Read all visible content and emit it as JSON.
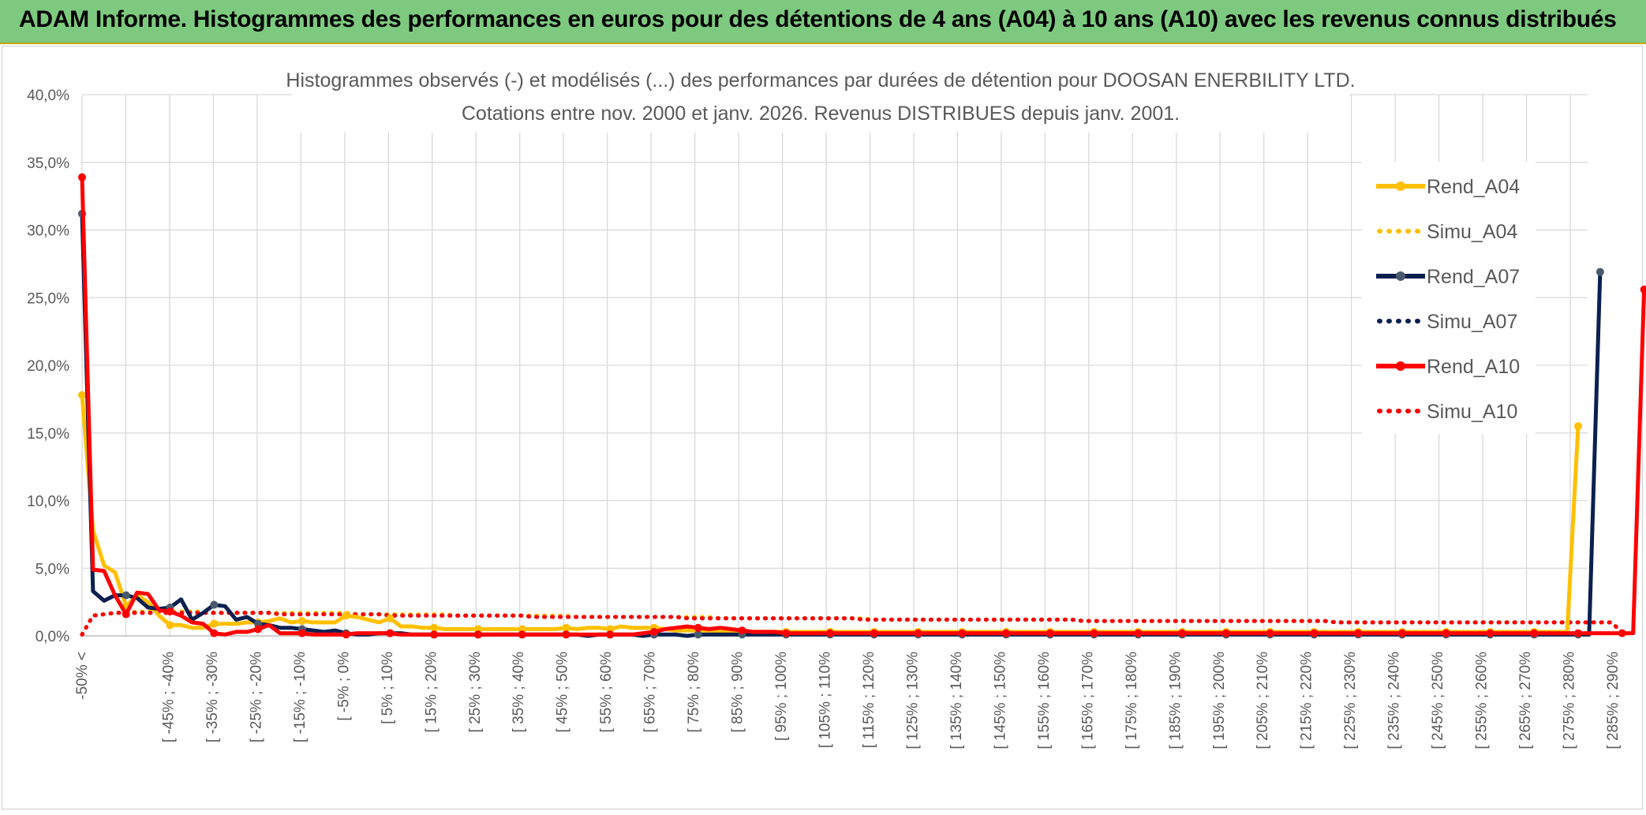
{
  "banner": {
    "title": "ADAM Informe. Histogrammes des performances en euros pour des détentions de 4 ans (A04) à 10 ans (A10) avec les revenus connus distribués"
  },
  "chart_data": {
    "type": "line",
    "title_line1": "Histogrammes observés (-) et modélisés (...) des performances par durées de détention pour DOOSAN ENERBILITY LTD.",
    "title_line2": "Cotations entre nov. 2000 et janv. 2026. Revenus DISTRIBUES depuis janv. 2001.",
    "y_ticks": [
      "0,0%",
      "5,0%",
      "10,0%",
      "15,0%",
      "20,0%",
      "25,0%",
      "30,0%",
      "35,0%",
      "40,0%"
    ],
    "ylim": [
      0,
      40
    ],
    "x_labels": [
      "-50% <",
      "[ -45% ; -40%",
      "[ -35% ; -30%",
      "[ -25% ; -20%",
      "[ -15% ; -10%",
      "[ -5% ; 0%",
      "[ 5% ; 10%",
      "[ 15% ; 20%",
      "[ 25% ; 30%",
      "[ 35% ; 40%",
      "[ 45% ; 50%",
      "[ 55% ; 60%",
      "[ 65% ; 70%",
      "[ 75% ; 80%",
      "[ 85% ; 90%",
      "[ 95% ; 100%",
      "[ 105% ; 110%",
      "[ 115% ; 120%",
      "[ 125% ; 130%",
      "[ 135% ; 140%",
      "[ 145% ; 150%",
      "[ 155% ; 160%",
      "[ 165% ; 170%",
      "[ 175% ; 180%",
      "[ 185% ; 190%",
      "[ 195% ; 200%",
      "[ 205% ; 210%",
      "[ 215% ; 220%",
      "[ 225% ; 230%",
      "[ 235% ; 240%",
      "[ 245% ; 250%",
      "[ 255% ; 260%",
      "[ 265% ; 270%",
      "[ 275% ; 280%",
      "[ 285% ; 290%"
    ],
    "legend_position": "right",
    "grid": true,
    "colors": {
      "A04": "#ffc000",
      "A07": "#0b2050",
      "A10": "#ff0000",
      "marker_A07": "#4a5a6e"
    },
    "series": [
      {
        "name": "Rend_A04",
        "style": "solid",
        "color": "#ffc000",
        "values": [
          17.8,
          7.8,
          5.2,
          4.7,
          2.2,
          3.0,
          2.5,
          1.5,
          0.8,
          0.8,
          0.6,
          0.6,
          0.9,
          0.9,
          0.9,
          1.0,
          1.0,
          1.1,
          1.3,
          1.0,
          1.1,
          1.0,
          1.0,
          1.0,
          1.5,
          1.4,
          1.2,
          1.0,
          1.3,
          0.7,
          0.7,
          0.6,
          0.6,
          0.5,
          0.5,
          0.5,
          0.5,
          0.5,
          0.5,
          0.5,
          0.5,
          0.5,
          0.5,
          0.5,
          0.6,
          0.5,
          0.6,
          0.6,
          0.5,
          0.7,
          0.6,
          0.6,
          0.6,
          0.5,
          0.4,
          0.4,
          0.4,
          0.4,
          0.3,
          0.3,
          0.3,
          0.3,
          0.3,
          0.3,
          0.3,
          0.3,
          0.3,
          0.3,
          0.3,
          0.3,
          0.3,
          0.3,
          0.3,
          0.3,
          0.3,
          0.3,
          0.3,
          0.3,
          0.3,
          0.3,
          0.3,
          0.3,
          0.3,
          0.3,
          0.3,
          0.3,
          0.3,
          0.3,
          0.3,
          0.3,
          0.3,
          0.3,
          0.3,
          0.3,
          0.3,
          0.3,
          0.3,
          0.3,
          0.3,
          0.3,
          0.3,
          0.3,
          0.3,
          0.3,
          0.3,
          0.3,
          0.3,
          0.3,
          0.3,
          0.3,
          0.3,
          0.3,
          0.3,
          0.3,
          0.3,
          0.3,
          0.3,
          0.3,
          0.3,
          0.3,
          0.3,
          0.3,
          0.3,
          0.3,
          0.3,
          0.3,
          0.3,
          0.3,
          0.3,
          0.3,
          0.3,
          0.3,
          0.3,
          0.3,
          0.3,
          0.3,
          15.5
        ]
      },
      {
        "name": "Simu_A04",
        "style": "dotted",
        "color": "#ffc000",
        "values": [
          0.1,
          1.5,
          1.6,
          1.7,
          1.7,
          1.8,
          1.8,
          1.8,
          1.8,
          1.8,
          1.8,
          1.8,
          1.7,
          1.7,
          1.7,
          1.7,
          1.7,
          1.7,
          1.7,
          1.7,
          1.7,
          1.7,
          1.7,
          1.7,
          1.7,
          1.6,
          1.6,
          1.6,
          1.6,
          1.6,
          1.6,
          1.6,
          1.6,
          1.6,
          1.5,
          1.5,
          1.5,
          1.5,
          1.5,
          1.5,
          1.5,
          1.5,
          1.5,
          1.5,
          1.5,
          1.4,
          1.4,
          1.4,
          1.4,
          1.4,
          1.4,
          1.4,
          1.4,
          1.4,
          1.4,
          1.4,
          1.4,
          1.4,
          1.3,
          1.3,
          1.3,
          1.3,
          1.3,
          1.3,
          1.3,
          1.3,
          1.3,
          1.3,
          1.3,
          1.3,
          1.3,
          1.3,
          1.2,
          1.2,
          1.2,
          1.2,
          1.2,
          1.2,
          1.2,
          1.2,
          1.2,
          1.2,
          1.2,
          1.2,
          1.2,
          1.2,
          1.2,
          1.2,
          1.2,
          1.2,
          1.2,
          1.1,
          1.1,
          1.1,
          1.1,
          1.1,
          1.1,
          1.1,
          1.1,
          1.1,
          1.1,
          1.1,
          1.1,
          1.1,
          1.1,
          1.1,
          1.1,
          1.1,
          1.1,
          1.1,
          1.1,
          1.1,
          1.1,
          1.1,
          1.0,
          1.0,
          1.0,
          1.0,
          1.0,
          1.0,
          1.0,
          1.0,
          1.0,
          1.0,
          1.0,
          1.0,
          1.0,
          1.0,
          1.0,
          1.0,
          1.0,
          1.0,
          1.0,
          1.0,
          1.0,
          1.0,
          1.0,
          1.0,
          1.0,
          1.0,
          0.3
        ]
      },
      {
        "name": "Rend_A07",
        "style": "solid",
        "color": "#0b2050",
        "values": [
          31.2,
          3.3,
          2.6,
          3.0,
          3.0,
          2.8,
          2.1,
          2.0,
          2.1,
          2.7,
          1.2,
          1.7,
          2.3,
          2.2,
          1.2,
          1.4,
          0.9,
          0.8,
          0.6,
          0.6,
          0.5,
          0.4,
          0.3,
          0.4,
          0.2,
          0.1,
          0.1,
          0.2,
          0.2,
          0.2,
          0.1,
          0.1,
          0.1,
          0.1,
          0.1,
          0.1,
          0.1,
          0.1,
          0.1,
          0.1,
          0.1,
          0.1,
          0.1,
          0.1,
          0.1,
          0.1,
          0.0,
          0.1,
          0.1,
          0.1,
          0.1,
          0.0,
          0.1,
          0.1,
          0.1,
          0.0,
          0.1,
          0.1,
          0.1,
          0.1,
          0.1,
          0.1,
          0.1,
          0.1,
          0.1,
          0.1,
          0.1,
          0.1,
          0.1,
          0.1,
          0.1,
          0.1,
          0.1,
          0.1,
          0.1,
          0.1,
          0.1,
          0.1,
          0.1,
          0.1,
          0.1,
          0.1,
          0.1,
          0.1,
          0.1,
          0.1,
          0.1,
          0.1,
          0.1,
          0.1,
          0.1,
          0.1,
          0.1,
          0.1,
          0.1,
          0.1,
          0.1,
          0.1,
          0.1,
          0.1,
          0.1,
          0.1,
          0.1,
          0.1,
          0.1,
          0.1,
          0.1,
          0.1,
          0.1,
          0.1,
          0.1,
          0.1,
          0.1,
          0.1,
          0.1,
          0.1,
          0.1,
          0.1,
          0.1,
          0.1,
          0.1,
          0.1,
          0.1,
          0.1,
          0.1,
          0.1,
          0.1,
          0.1,
          0.1,
          0.1,
          0.1,
          0.1,
          0.1,
          0.1,
          0.1,
          0.1,
          0.1,
          0.1,
          26.9
        ]
      },
      {
        "name": "Simu_A07",
        "style": "dotted",
        "color": "#0b2050",
        "values": [
          0.1,
          1.5,
          1.6,
          1.7,
          1.7,
          1.7,
          1.7,
          1.7,
          1.7,
          1.7,
          1.7,
          1.7,
          1.7,
          1.7,
          1.7,
          1.7,
          1.7,
          1.7,
          1.6,
          1.6,
          1.6,
          1.6,
          1.6,
          1.6,
          1.6,
          1.6,
          1.6,
          1.6,
          1.5,
          1.5,
          1.5,
          1.5,
          1.5,
          1.5,
          1.5,
          1.5,
          1.5,
          1.5,
          1.5,
          1.5,
          1.5,
          1.4,
          1.4,
          1.4,
          1.4,
          1.4,
          1.4,
          1.4,
          1.4,
          1.4,
          1.4,
          1.4,
          1.4,
          1.4,
          1.4,
          1.3,
          1.3,
          1.3,
          1.3,
          1.3,
          1.3,
          1.3,
          1.3,
          1.3,
          1.3,
          1.3,
          1.3,
          1.3,
          1.3,
          1.3,
          1.3,
          1.2,
          1.2,
          1.2,
          1.2,
          1.2,
          1.2,
          1.2,
          1.2,
          1.2,
          1.2,
          1.2,
          1.2,
          1.2,
          1.2,
          1.2,
          1.2,
          1.2,
          1.2,
          1.2,
          1.2,
          1.1,
          1.1,
          1.1,
          1.1,
          1.1,
          1.1,
          1.1,
          1.1,
          1.1,
          1.1,
          1.1,
          1.1,
          1.1,
          1.1,
          1.1,
          1.1,
          1.1,
          1.1,
          1.1,
          1.1,
          1.1,
          1.1,
          1.1,
          1.0,
          1.0,
          1.0,
          1.0,
          1.0,
          1.0,
          1.0,
          1.0,
          1.0,
          1.0,
          1.0,
          1.0,
          1.0,
          1.0,
          1.0,
          1.0,
          1.0,
          1.0,
          1.0,
          1.0,
          1.0,
          1.0,
          1.0,
          1.0,
          1.0,
          1.0,
          0.3
        ]
      },
      {
        "name": "Rend_A10",
        "style": "solid",
        "color": "#ff0000",
        "values": [
          33.9,
          4.9,
          4.8,
          3.0,
          1.6,
          3.2,
          3.1,
          1.9,
          1.8,
          1.5,
          1.0,
          0.9,
          0.2,
          0.1,
          0.3,
          0.3,
          0.5,
          0.8,
          0.2,
          0.2,
          0.2,
          0.1,
          0.1,
          0.1,
          0.1,
          0.2,
          0.2,
          0.2,
          0.2,
          0.1,
          0.1,
          0.1,
          0.1,
          0.1,
          0.1,
          0.1,
          0.1,
          0.1,
          0.1,
          0.1,
          0.1,
          0.1,
          0.1,
          0.1,
          0.1,
          0.1,
          0.1,
          0.1,
          0.1,
          0.1,
          0.1,
          0.2,
          0.3,
          0.5,
          0.6,
          0.7,
          0.6,
          0.5,
          0.6,
          0.5,
          0.4,
          0.3,
          0.3,
          0.3,
          0.2,
          0.2,
          0.2,
          0.2,
          0.2,
          0.2,
          0.2,
          0.2,
          0.2,
          0.2,
          0.2,
          0.2,
          0.2,
          0.2,
          0.2,
          0.2,
          0.2,
          0.2,
          0.2,
          0.2,
          0.2,
          0.2,
          0.2,
          0.2,
          0.2,
          0.2,
          0.2,
          0.2,
          0.2,
          0.2,
          0.2,
          0.2,
          0.2,
          0.2,
          0.2,
          0.2,
          0.2,
          0.2,
          0.2,
          0.2,
          0.2,
          0.2,
          0.2,
          0.2,
          0.2,
          0.2,
          0.2,
          0.2,
          0.2,
          0.2,
          0.2,
          0.2,
          0.2,
          0.2,
          0.2,
          0.2,
          0.2,
          0.2,
          0.2,
          0.2,
          0.2,
          0.2,
          0.2,
          0.2,
          0.2,
          0.2,
          0.2,
          0.2,
          0.2,
          0.2,
          0.2,
          0.2,
          0.2,
          0.2,
          0.2,
          0.2,
          0.2,
          0.2,
          25.6
        ]
      },
      {
        "name": "Simu_A10",
        "style": "dotted",
        "color": "#ff0000",
        "values": [
          0.1,
          1.5,
          1.6,
          1.7,
          1.7,
          1.7,
          1.7,
          1.7,
          1.7,
          1.7,
          1.7,
          1.7,
          1.7,
          1.7,
          1.7,
          1.7,
          1.7,
          1.7,
          1.6,
          1.6,
          1.6,
          1.6,
          1.6,
          1.6,
          1.6,
          1.6,
          1.6,
          1.6,
          1.5,
          1.5,
          1.5,
          1.5,
          1.5,
          1.5,
          1.5,
          1.5,
          1.5,
          1.5,
          1.5,
          1.5,
          1.5,
          1.4,
          1.4,
          1.4,
          1.4,
          1.4,
          1.4,
          1.4,
          1.4,
          1.4,
          1.4,
          1.4,
          1.4,
          1.4,
          1.4,
          1.3,
          1.3,
          1.3,
          1.3,
          1.3,
          1.3,
          1.3,
          1.3,
          1.3,
          1.3,
          1.3,
          1.3,
          1.3,
          1.3,
          1.3,
          1.3,
          1.2,
          1.2,
          1.2,
          1.2,
          1.2,
          1.2,
          1.2,
          1.2,
          1.2,
          1.2,
          1.2,
          1.2,
          1.2,
          1.2,
          1.2,
          1.2,
          1.2,
          1.2,
          1.2,
          1.2,
          1.1,
          1.1,
          1.1,
          1.1,
          1.1,
          1.1,
          1.1,
          1.1,
          1.1,
          1.1,
          1.1,
          1.1,
          1.1,
          1.1,
          1.1,
          1.1,
          1.1,
          1.1,
          1.1,
          1.1,
          1.1,
          1.1,
          1.1,
          1.0,
          1.0,
          1.0,
          1.0,
          1.0,
          1.0,
          1.0,
          1.0,
          1.0,
          1.0,
          1.0,
          1.0,
          1.0,
          1.0,
          1.0,
          1.0,
          1.0,
          1.0,
          1.0,
          1.0,
          1.0,
          1.0,
          1.0,
          1.0,
          1.0,
          1.0,
          0.3
        ]
      }
    ]
  }
}
